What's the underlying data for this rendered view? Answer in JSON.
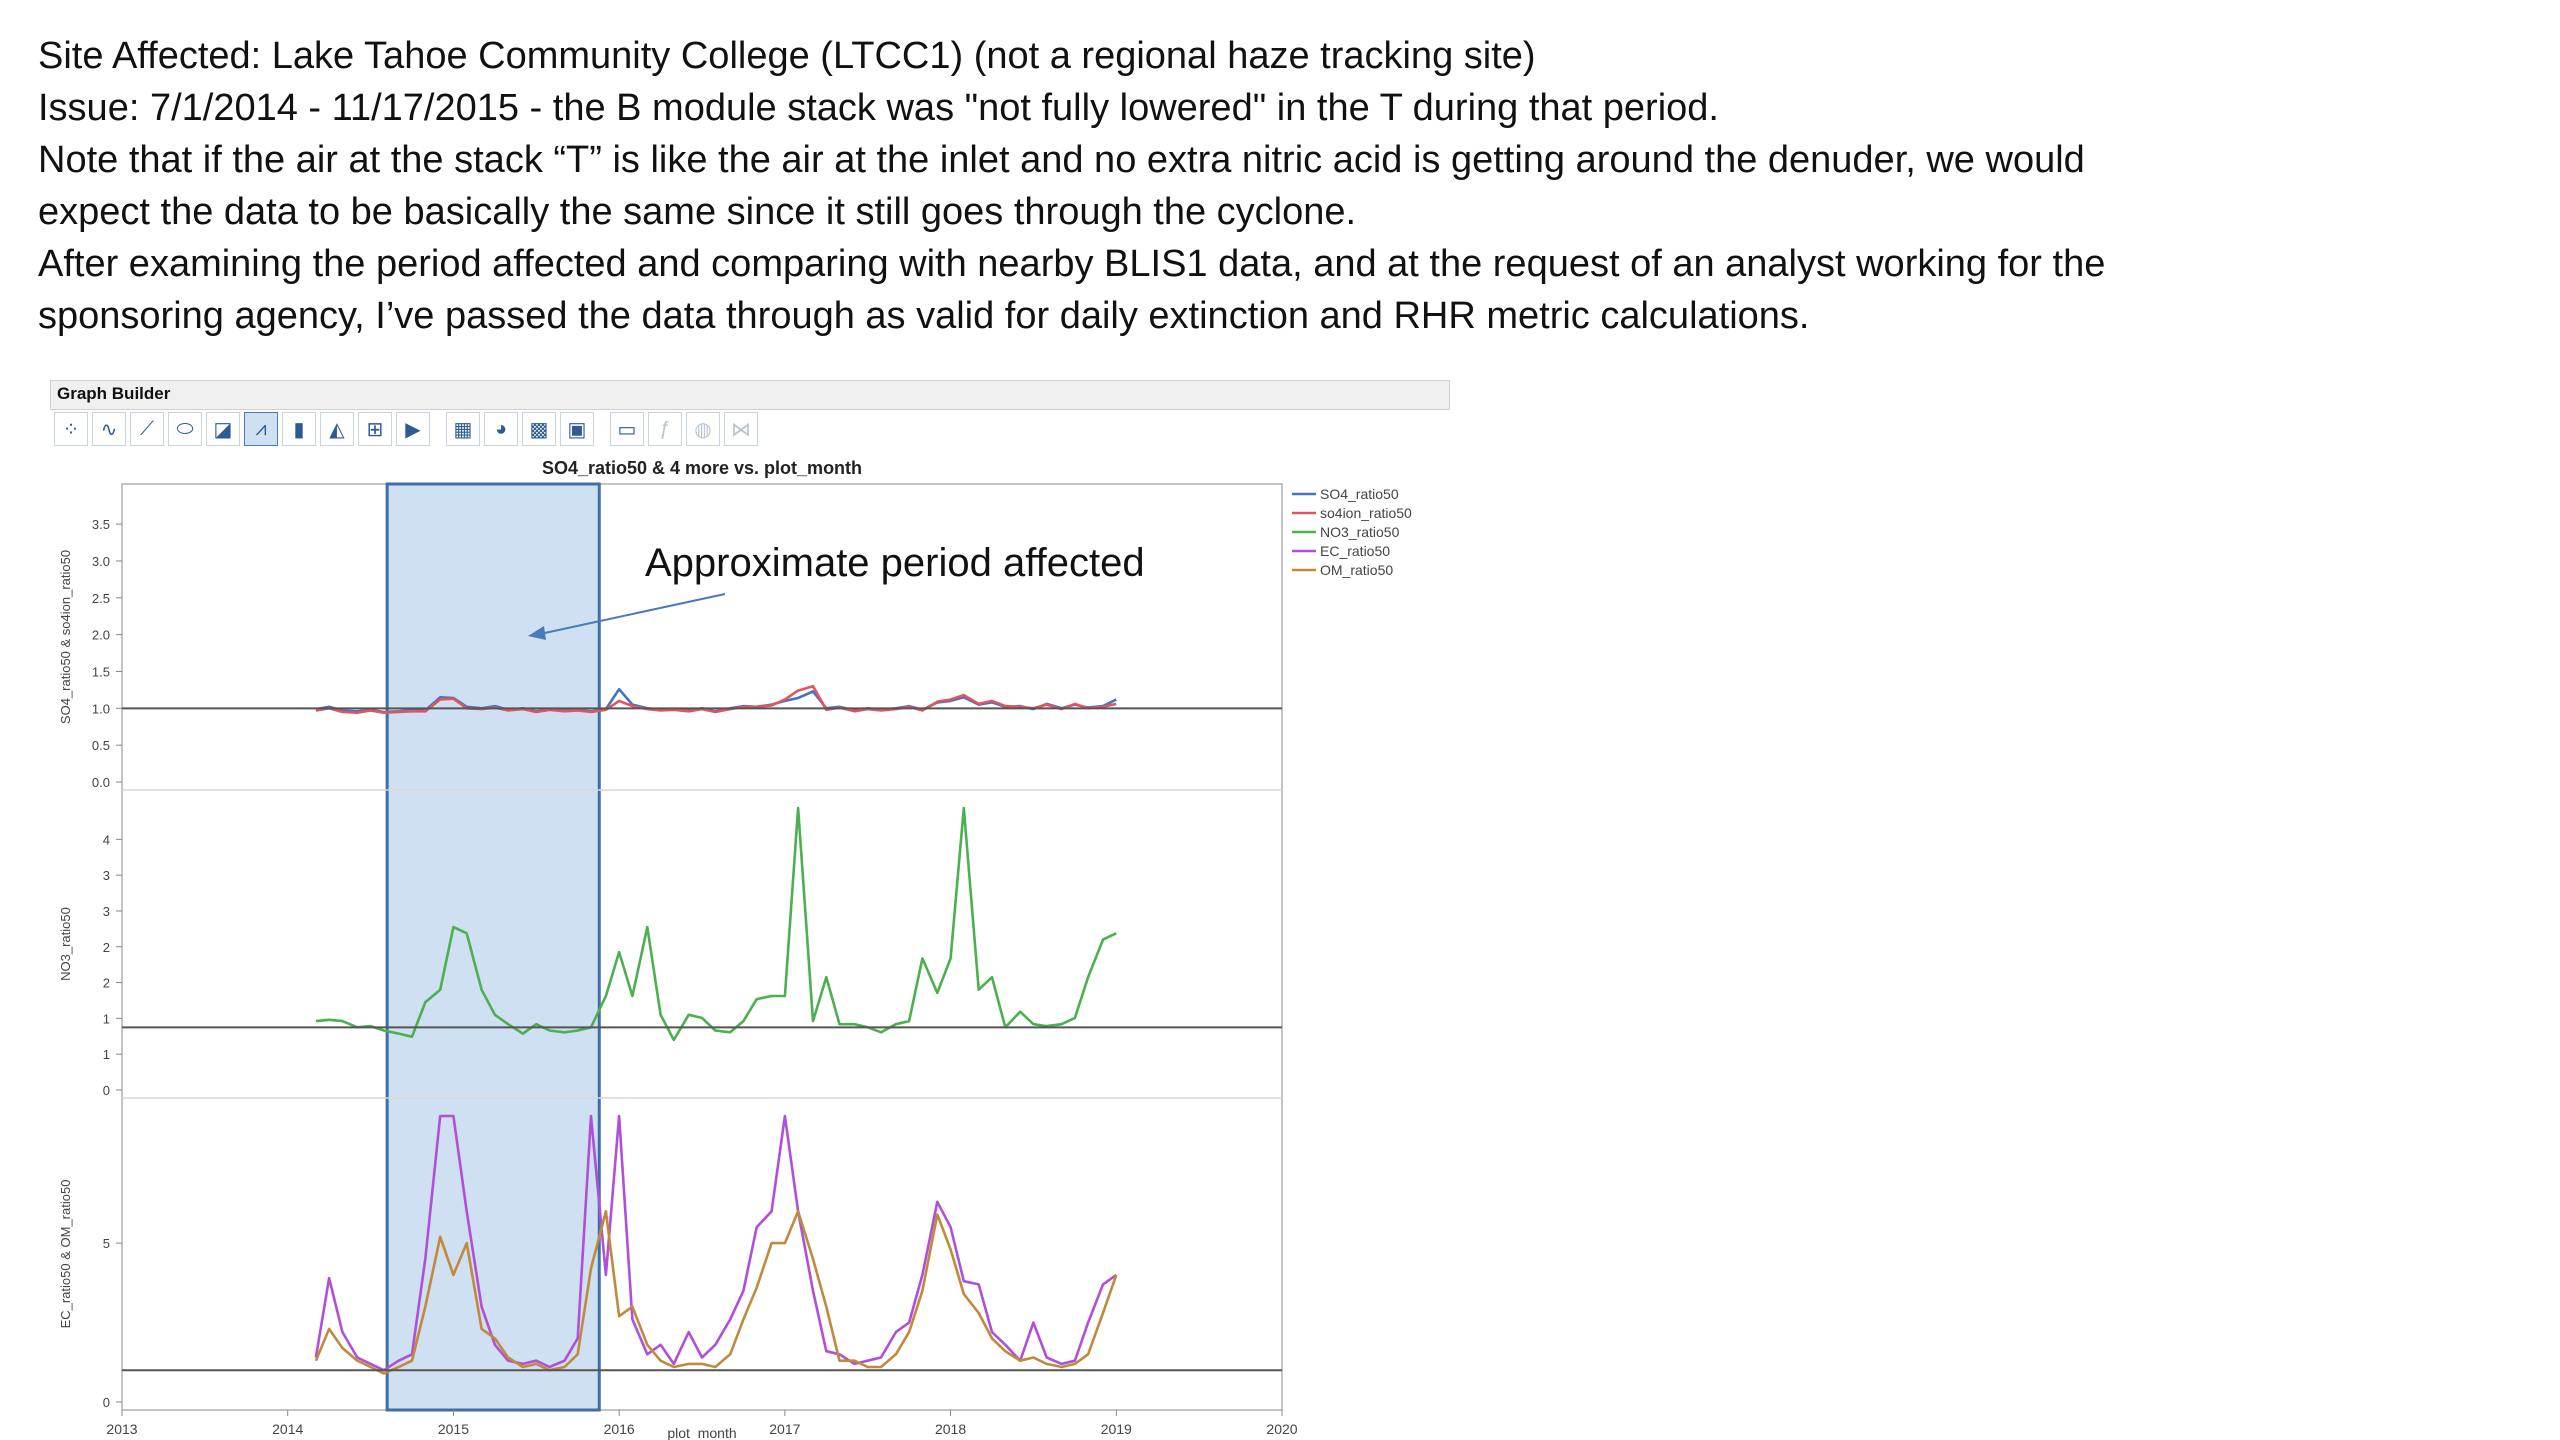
{
  "notes": {
    "line1": "Site Affected: Lake Tahoe Community College (LTCC1) (not a regional haze tracking site)",
    "line2": "Issue:  7/1/2014 - 11/17/2015 - the B module stack was \"not fully lowered\" in the T during that period.",
    "line3": "Note that if the air at the stack “T” is like the air at the inlet and no extra nitric acid is getting around the denuder, we would",
    "line4": "expect the data to be basically the same since it still goes through the cyclone.",
    "line5": "After examining the period affected and comparing with nearby BLIS1 data, and at the request of an analyst working for the",
    "line6": "sponsoring agency, I’ve passed the data through as valid for daily extinction and RHR metric calculations."
  },
  "graph_builder": {
    "title": "Graph Builder",
    "tools": [
      {
        "icon": "points-icon",
        "glyph": "⁘",
        "active": false,
        "dim": false
      },
      {
        "icon": "smoother-icon",
        "glyph": "∿",
        "active": false,
        "dim": false
      },
      {
        "icon": "line-of-fit-icon",
        "glyph": "⟋",
        "active": false,
        "dim": false
      },
      {
        "icon": "ellipse-icon",
        "glyph": "⬭",
        "active": false,
        "dim": false
      },
      {
        "icon": "contour-icon",
        "glyph": "◪",
        "active": false,
        "dim": false
      },
      {
        "icon": "line-icon",
        "glyph": "⩘",
        "active": true,
        "dim": false
      },
      {
        "icon": "bar-icon",
        "glyph": "▮",
        "active": false,
        "dim": false
      },
      {
        "icon": "area-icon",
        "glyph": "◭",
        "active": false,
        "dim": false
      },
      {
        "icon": "box-plot-icon",
        "glyph": "⊞",
        "active": false,
        "dim": false
      },
      {
        "icon": "histogram-icon",
        "glyph": "▶",
        "active": false,
        "dim": false
      },
      {
        "icon": "heatmap-icon",
        "glyph": "▦",
        "active": false,
        "dim": false,
        "sep": true
      },
      {
        "icon": "pie-icon",
        "glyph": "◕",
        "active": false,
        "dim": false
      },
      {
        "icon": "treemap-icon",
        "glyph": "▩",
        "active": false,
        "dim": false
      },
      {
        "icon": "mosaic-icon",
        "glyph": "▣",
        "active": false,
        "dim": false
      },
      {
        "icon": "caption-box-icon",
        "glyph": "▭",
        "active": false,
        "dim": false,
        "sep": true
      },
      {
        "icon": "formula-icon",
        "glyph": "ƒ",
        "active": false,
        "dim": true
      },
      {
        "icon": "map-shapes-icon",
        "glyph": "◍",
        "active": false,
        "dim": true
      },
      {
        "icon": "parallel-icon",
        "glyph": "⋈",
        "active": false,
        "dim": true
      }
    ]
  },
  "chart_data": {
    "type": "line",
    "title": "SO4_ratio50 & 4 more vs. plot_month",
    "xlabel": "plot_month",
    "xlim": [
      2013,
      2020
    ],
    "x_ticks": [
      "2013",
      "2014",
      "2015",
      "2016",
      "2017",
      "2018",
      "2019",
      "2020"
    ],
    "annotation": "Approximate period affected",
    "highlight_range": [
      2014.6,
      2015.88
    ],
    "x": [
      2014.17,
      2014.25,
      2014.33,
      2014.42,
      2014.5,
      2014.58,
      2014.67,
      2014.75,
      2014.83,
      2014.92,
      2015.0,
      2015.08,
      2015.17,
      2015.25,
      2015.33,
      2015.42,
      2015.5,
      2015.58,
      2015.67,
      2015.75,
      2015.83,
      2015.92,
      2016.0,
      2016.08,
      2016.17,
      2016.25,
      2016.33,
      2016.42,
      2016.5,
      2016.58,
      2016.67,
      2016.75,
      2016.83,
      2016.92,
      2017.0,
      2017.08,
      2017.17,
      2017.25,
      2017.33,
      2017.42,
      2017.5,
      2017.58,
      2017.67,
      2017.75,
      2017.83,
      2017.92,
      2018.0,
      2018.08,
      2018.17,
      2018.25,
      2018.33,
      2018.42,
      2018.5,
      2018.58,
      2018.67,
      2018.75,
      2018.83,
      2018.92,
      2019.0
    ],
    "panels": [
      {
        "ylabel": "SO4_ratio50 & so4ion_ratio50",
        "ylim": [
          0,
          3.8
        ],
        "y_ticks": [
          "0.0",
          "0.5",
          "1.0",
          "1.5",
          "2.0",
          "2.5",
          "3.0",
          "3.5"
        ],
        "ref_line": 1.0,
        "series": [
          {
            "name": "SO4_ratio50",
            "color": "#4472c4",
            "values": [
              0.99,
              1.02,
              0.97,
              0.96,
              0.98,
              0.95,
              0.96,
              0.98,
              0.97,
              1.15,
              1.14,
              1.02,
              1.0,
              1.03,
              0.98,
              1.0,
              0.96,
              0.99,
              0.97,
              0.98,
              0.96,
              0.99,
              1.26,
              1.05,
              1.0,
              0.98,
              0.99,
              0.97,
              1.0,
              0.96,
              1.0,
              1.03,
              1.02,
              1.05,
              1.1,
              1.14,
              1.23,
              1.0,
              1.02,
              0.97,
              1.0,
              0.98,
              1.0,
              1.03,
              0.98,
              1.08,
              1.1,
              1.15,
              1.05,
              1.08,
              1.02,
              1.03,
              0.99,
              1.06,
              1.0,
              1.05,
              1.01,
              1.03,
              1.12
            ]
          },
          {
            "name": "so4ion_ratio50",
            "color": "#e0565f",
            "values": [
              0.97,
              1.0,
              0.95,
              0.94,
              0.97,
              0.94,
              0.95,
              0.96,
              0.96,
              1.12,
              1.13,
              1.0,
              0.99,
              1.01,
              0.97,
              0.99,
              0.95,
              0.98,
              0.96,
              0.97,
              0.95,
              0.98,
              1.1,
              1.03,
              0.99,
              0.97,
              0.98,
              0.96,
              0.99,
              0.95,
              0.99,
              1.02,
              1.02,
              1.04,
              1.12,
              1.24,
              1.3,
              0.98,
              1.01,
              0.96,
              0.99,
              0.97,
              0.99,
              1.02,
              0.97,
              1.09,
              1.12,
              1.18,
              1.06,
              1.1,
              1.03,
              1.02,
              1.0,
              1.05,
              0.99,
              1.06,
              1.0,
              1.02,
              1.06
            ]
          }
        ]
      },
      {
        "ylabel": "NO3_ratio50",
        "ylim": [
          0,
          4.5
        ],
        "y_ticks": [
          "0",
          "1",
          "1",
          "2",
          "2",
          "3",
          "3",
          "4"
        ],
        "ref_line": 1.0,
        "series": [
          {
            "name": "NO3_ratio50",
            "color": "#4caf50",
            "values": [
              1.1,
              1.12,
              1.1,
              1.0,
              1.02,
              0.95,
              0.9,
              0.85,
              1.4,
              1.6,
              2.6,
              2.5,
              1.6,
              1.2,
              1.05,
              0.9,
              1.05,
              0.95,
              0.92,
              0.95,
              1.0,
              1.5,
              2.2,
              1.5,
              2.6,
              1.2,
              0.8,
              1.2,
              1.15,
              0.95,
              0.92,
              1.1,
              1.45,
              1.5,
              1.5,
              4.5,
              1.1,
              1.8,
              1.05,
              1.05,
              1.0,
              0.92,
              1.05,
              1.1,
              2.1,
              1.55,
              2.1,
              4.5,
              1.6,
              1.8,
              1.0,
              1.25,
              1.05,
              1.02,
              1.05,
              1.15,
              1.8,
              2.4,
              2.5
            ]
          }
        ]
      },
      {
        "ylabel": "EC_ratio50 & OM_ratio50",
        "ylim": [
          0,
          9
        ],
        "y_ticks": [
          "0",
          "5"
        ],
        "ref_line": 1.0,
        "series": [
          {
            "name": "EC_ratio50",
            "color": "#b04fd8",
            "values": [
              1.4,
              3.9,
              2.2,
              1.4,
              1.2,
              1.0,
              1.3,
              1.5,
              4.5,
              9.0,
              9.0,
              6.0,
              3.0,
              1.8,
              1.3,
              1.2,
              1.3,
              1.1,
              1.3,
              2.0,
              9.0,
              4.0,
              9.0,
              2.6,
              1.5,
              1.8,
              1.2,
              2.2,
              1.4,
              1.8,
              2.6,
              3.5,
              5.5,
              6.0,
              9.0,
              6.0,
              3.5,
              1.6,
              1.5,
              1.2,
              1.3,
              1.4,
              2.2,
              2.5,
              4.0,
              6.3,
              5.5,
              3.8,
              3.7,
              2.2,
              1.8,
              1.3,
              2.5,
              1.4,
              1.2,
              1.3,
              2.5,
              3.7,
              4.0
            ]
          },
          {
            "name": "OM_ratio50",
            "color": "#c08a3e",
            "values": [
              1.3,
              2.3,
              1.7,
              1.3,
              1.1,
              0.9,
              1.1,
              1.3,
              3.0,
              5.2,
              4.0,
              5.0,
              2.3,
              2.0,
              1.4,
              1.1,
              1.2,
              1.0,
              1.1,
              1.5,
              4.2,
              6.0,
              2.7,
              3.0,
              1.8,
              1.3,
              1.1,
              1.2,
              1.2,
              1.1,
              1.5,
              2.6,
              3.6,
              5.0,
              5.0,
              6.0,
              4.5,
              3.0,
              1.3,
              1.3,
              1.1,
              1.1,
              1.5,
              2.2,
              3.5,
              5.9,
              4.8,
              3.4,
              2.8,
              2.0,
              1.6,
              1.3,
              1.4,
              1.2,
              1.1,
              1.2,
              1.5,
              2.8,
              4.0
            ]
          }
        ]
      }
    ]
  }
}
